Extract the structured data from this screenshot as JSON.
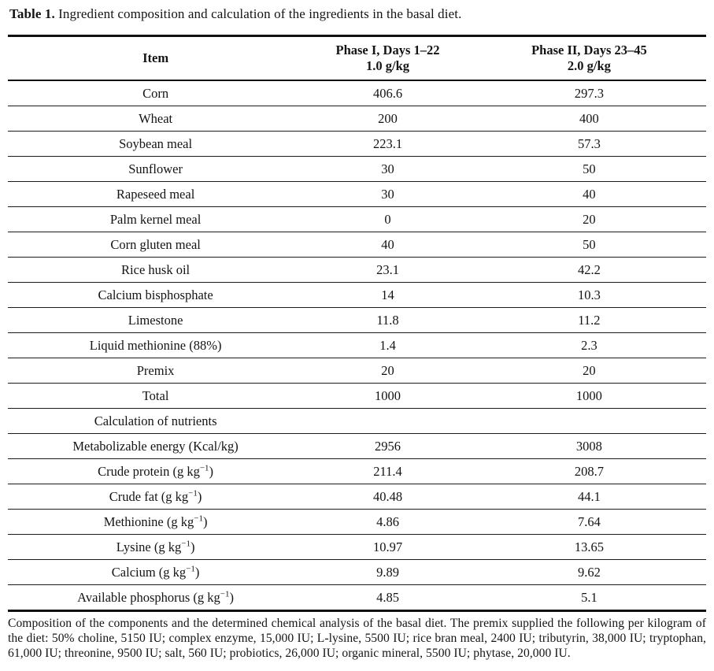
{
  "caption": {
    "label": "Table 1.",
    "text": " Ingredient composition and calculation of the ingredients in the basal diet."
  },
  "table": {
    "columns": [
      {
        "label": "Item"
      },
      {
        "label_line1": "Phase I, Days 1–22",
        "label_line2": "1.0 g/kg"
      },
      {
        "label_line1": "Phase II, Days 23–45",
        "label_line2": "2.0 g/kg"
      }
    ],
    "rows": [
      {
        "item": "Corn",
        "phase1": "406.6",
        "phase2": "297.3"
      },
      {
        "item": "Wheat",
        "phase1": "200",
        "phase2": "400"
      },
      {
        "item": "Soybean meal",
        "phase1": "223.1",
        "phase2": "57.3"
      },
      {
        "item": "Sunflower",
        "phase1": "30",
        "phase2": "50"
      },
      {
        "item": "Rapeseed meal",
        "phase1": "30",
        "phase2": "40"
      },
      {
        "item": "Palm kernel meal",
        "phase1": "0",
        "phase2": "20"
      },
      {
        "item": "Corn gluten meal",
        "phase1": "40",
        "phase2": "50"
      },
      {
        "item": "Rice husk oil",
        "phase1": "23.1",
        "phase2": "42.2"
      },
      {
        "item": "Calcium bisphosphate",
        "phase1": "14",
        "phase2": "10.3"
      },
      {
        "item": "Limestone",
        "phase1": "11.8",
        "phase2": "11.2"
      },
      {
        "item": "Liquid methionine (88%)",
        "phase1": "1.4",
        "phase2": "2.3"
      },
      {
        "item": "Premix",
        "phase1": "20",
        "phase2": "20"
      },
      {
        "item": "Total",
        "phase1": "1000",
        "phase2": "1000"
      },
      {
        "item": "Calculation of nutrients",
        "phase1": "",
        "phase2": ""
      },
      {
        "item": "Metabolizable energy (Kcal/kg)",
        "phase1": "2956",
        "phase2": "3008"
      },
      {
        "item": "Crude protein (g kg",
        "item_sup": "−1",
        "item_suffix": ")",
        "phase1": "211.4",
        "phase2": "208.7"
      },
      {
        "item": "Crude fat (g kg",
        "item_sup": "−1",
        "item_suffix": ")",
        "phase1": "40.48",
        "phase2": "44.1"
      },
      {
        "item": "Methionine (g kg",
        "item_sup": "−1",
        "item_suffix": ")",
        "phase1": "4.86",
        "phase2": "7.64"
      },
      {
        "item": "Lysine (g kg",
        "item_sup": "−1",
        "item_suffix": ")",
        "phase1": "10.97",
        "phase2": "13.65"
      },
      {
        "item": "Calcium (g kg",
        "item_sup": "−1",
        "item_suffix": ")",
        "phase1": "9.89",
        "phase2": "9.62"
      },
      {
        "item": "Available phosphorus (g kg",
        "item_sup": "−1",
        "item_suffix": ")",
        "phase1": "4.85",
        "phase2": "5.1"
      }
    ]
  },
  "footnote": {
    "text": "Composition of the components and the determined chemical analysis of the basal diet. The premix supplied the following per kilogram of the diet: 50% choline, 5150 IU; complex enzyme, 15,000 IU; L-lysine, 5500 IU; rice bran meal, 2400 IU; tributyrin, 38,000 IU; tryptophan, 61,000 IU; threonine, 9500 IU; salt, 560 IU; probiotics, 26,000 IU; organic mineral, 5500 IU; phytase, 20,000 IU."
  },
  "colors": {
    "ink": "#141414",
    "rule": "#111111",
    "background": "#ffffff"
  }
}
